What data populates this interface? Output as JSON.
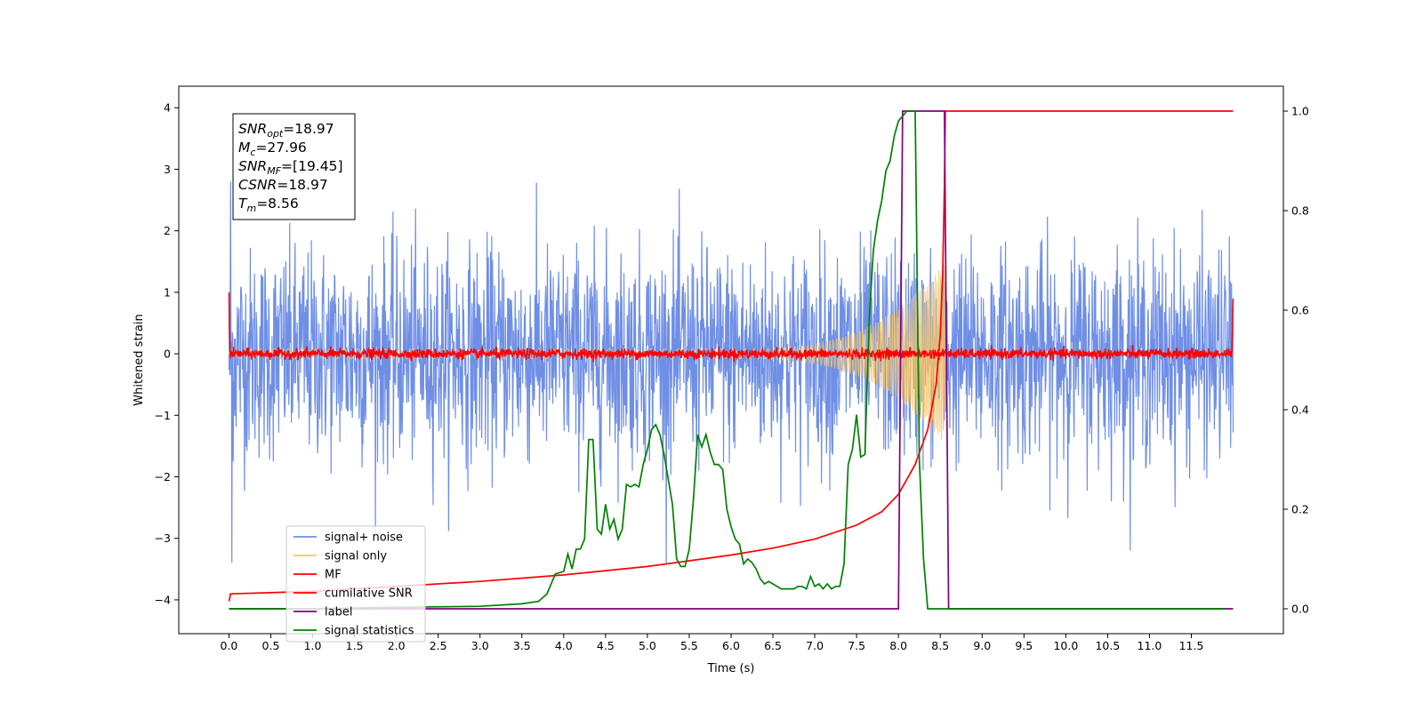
{
  "chart_data": {
    "type": "line",
    "title": "",
    "xlabel": "Time (s)",
    "ylabel": "Whitened strain",
    "xlim": [
      -0.6,
      12.6
    ],
    "ylim": [
      -4.55,
      4.35
    ],
    "y2lim": [
      -0.05,
      1.05
    ],
    "x_ticks": [
      0.0,
      0.5,
      1.0,
      1.5,
      2.0,
      2.5,
      3.0,
      3.5,
      4.0,
      4.5,
      5.0,
      5.5,
      6.0,
      6.5,
      7.0,
      7.5,
      8.0,
      8.5,
      9.0,
      9.5,
      10.0,
      10.5,
      11.0,
      11.5
    ],
    "x_tick_labels": [
      "0.0",
      "0.5",
      "1.0",
      "1.5",
      "2.0",
      "2.5",
      "3.0",
      "3.5",
      "4.0",
      "4.5",
      "5.0",
      "5.5",
      "6.0",
      "6.5",
      "7.0",
      "7.5",
      "8.0",
      "8.5",
      "9.0",
      "9.5",
      "10.0",
      "10.5",
      "11.0",
      "11.5"
    ],
    "y_ticks": [
      -4,
      -3,
      -2,
      -1,
      0,
      1,
      2,
      3,
      4
    ],
    "y_tick_labels": [
      "−4",
      "−3",
      "−2",
      "−1",
      "0",
      "1",
      "2",
      "3",
      "4"
    ],
    "y2_ticks": [
      0.0,
      0.2,
      0.4,
      0.6,
      0.8,
      1.0
    ],
    "y2_tick_labels": [
      "0.0",
      "0.2",
      "0.4",
      "0.6",
      "0.8",
      "1.0"
    ],
    "grid": false,
    "legend_position": "lower-left",
    "series": [
      {
        "name": "signal+ noise",
        "color": "#6f8fe6",
        "axis": "left",
        "description": "whitened noise plus signal, amplitude ~ ±2, x from 0 to 12"
      },
      {
        "name": "signal only",
        "color": "#f2c46b",
        "axis": "left",
        "description": "chirp growing to ~±1.5 at 8.5 s"
      },
      {
        "name": "MF",
        "color": "#ff0000",
        "axis": "left",
        "description": "matched filter output near 0"
      },
      {
        "name": "cumilative SNR",
        "color": "#ff0000",
        "axis": "right",
        "x": [
          0.0,
          0.02,
          1.0,
          2.0,
          3.0,
          4.0,
          5.0,
          6.0,
          6.5,
          7.0,
          7.5,
          7.8,
          8.0,
          8.2,
          8.35,
          8.45,
          8.5,
          8.53,
          8.55,
          8.56,
          12.0
        ],
        "y": [
          0.015,
          0.03,
          0.035,
          0.045,
          0.055,
          0.068,
          0.085,
          0.108,
          0.122,
          0.14,
          0.168,
          0.195,
          0.23,
          0.29,
          0.36,
          0.45,
          0.55,
          0.68,
          0.85,
          1.0,
          1.0
        ]
      },
      {
        "name": "label",
        "color": "#800080",
        "axis": "right",
        "x": [
          0.0,
          8.0,
          8.05,
          8.55,
          8.6,
          12.0
        ],
        "y": [
          0.0,
          0.0,
          1.0,
          1.0,
          0.0,
          0.0
        ]
      },
      {
        "name": "signal statistics",
        "color": "#008000",
        "axis": "right",
        "x": [
          0.0,
          1.0,
          2.0,
          3.0,
          3.5,
          3.7,
          3.8,
          3.9,
          4.0,
          4.05,
          4.1,
          4.15,
          4.2,
          4.25,
          4.3,
          4.35,
          4.4,
          4.45,
          4.5,
          4.55,
          4.6,
          4.65,
          4.7,
          4.75,
          4.8,
          4.85,
          4.9,
          4.95,
          5.0,
          5.05,
          5.1,
          5.15,
          5.2,
          5.25,
          5.3,
          5.35,
          5.4,
          5.45,
          5.5,
          5.55,
          5.6,
          5.65,
          5.7,
          5.75,
          5.8,
          5.85,
          5.9,
          5.95,
          6.0,
          6.05,
          6.1,
          6.15,
          6.2,
          6.25,
          6.3,
          6.35,
          6.4,
          6.45,
          6.5,
          6.55,
          6.6,
          6.65,
          6.7,
          6.75,
          6.8,
          6.85,
          6.9,
          6.95,
          7.0,
          7.05,
          7.1,
          7.15,
          7.2,
          7.25,
          7.3,
          7.35,
          7.4,
          7.45,
          7.5,
          7.55,
          7.6,
          7.65,
          7.7,
          7.75,
          7.8,
          7.85,
          7.9,
          7.95,
          8.0,
          8.05,
          8.1,
          8.15,
          8.2,
          8.25,
          8.3,
          8.35,
          8.4,
          8.45,
          8.5,
          8.53,
          8.55,
          8.6,
          8.65,
          9.0,
          10.0,
          11.0,
          11.9
        ],
        "y": [
          0.0,
          0.0,
          0.003,
          0.005,
          0.01,
          0.015,
          0.03,
          0.07,
          0.075,
          0.11,
          0.08,
          0.12,
          0.12,
          0.14,
          0.34,
          0.34,
          0.16,
          0.15,
          0.21,
          0.16,
          0.18,
          0.14,
          0.16,
          0.25,
          0.245,
          0.25,
          0.245,
          0.29,
          0.32,
          0.36,
          0.37,
          0.35,
          0.31,
          0.26,
          0.21,
          0.1,
          0.085,
          0.085,
          0.12,
          0.22,
          0.35,
          0.325,
          0.35,
          0.315,
          0.29,
          0.29,
          0.28,
          0.2,
          0.165,
          0.14,
          0.13,
          0.09,
          0.1,
          0.093,
          0.08,
          0.06,
          0.05,
          0.055,
          0.05,
          0.045,
          0.04,
          0.04,
          0.04,
          0.04,
          0.045,
          0.045,
          0.04,
          0.065,
          0.045,
          0.05,
          0.04,
          0.05,
          0.04,
          0.045,
          0.045,
          0.09,
          0.29,
          0.32,
          0.39,
          0.305,
          0.31,
          0.58,
          0.72,
          0.78,
          0.82,
          0.88,
          0.9,
          0.95,
          0.98,
          0.99,
          1.0,
          1.0,
          1.0,
          0.3,
          0.1,
          0.0,
          0.0,
          0.0,
          0.0,
          0.0,
          0.0,
          0.0,
          0.0,
          0.0,
          0.0,
          0.0,
          0.0
        ]
      }
    ]
  },
  "annotation": {
    "lines": [
      {
        "var": "SNR",
        "sub": "opt",
        "value": "=18.97"
      },
      {
        "var": "M",
        "sub": "c",
        "value": "=27.96"
      },
      {
        "var": "SNR",
        "sub": "MF",
        "value": "=[19.45]"
      },
      {
        "var": "CSNR",
        "sub": "",
        "value": "=18.97"
      },
      {
        "var": "T",
        "sub": "m",
        "value": "=8.56"
      }
    ]
  }
}
